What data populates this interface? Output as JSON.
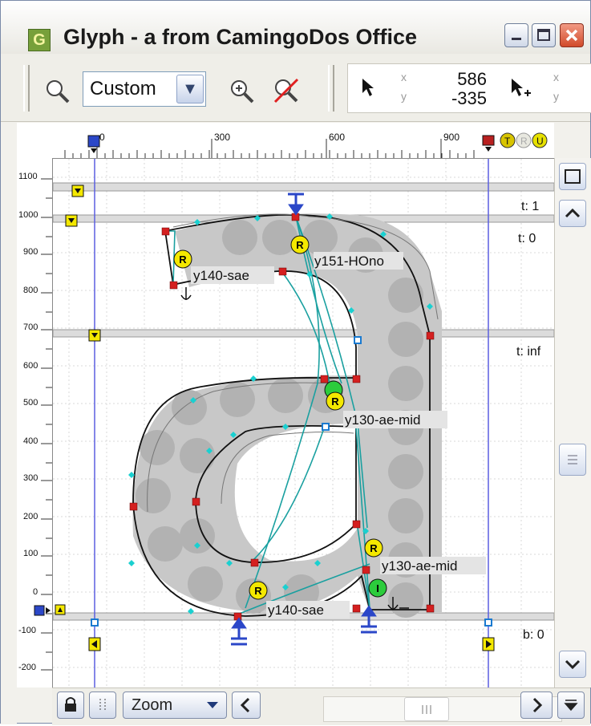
{
  "window": {
    "title": "Glyph - a from CamingoDos Office",
    "title_icon_letter": "G",
    "title_icon_color": "#77a03a",
    "buttons": [
      "minimize-icon",
      "maximize-icon",
      "close-icon"
    ]
  },
  "toolbar": {
    "zoom_label": "Custom",
    "zoom_in_icon": "zoom-in-icon",
    "zoom_out_icon": "magnifier-icon",
    "no_zoom_icon": "zoom-reset-icon",
    "pointer_icon": "arrow-pointer-icon",
    "pointer_add_icon": "arrow-add-pointer-icon",
    "x_label": "x",
    "y_label": "y",
    "x_value": "586",
    "y_value": "-335",
    "x2_label": "x",
    "y2_label": "y"
  },
  "ruler_top": {
    "labels": [
      "0",
      "300",
      "600",
      "900"
    ],
    "status_icons": [
      "T",
      "R",
      "U"
    ]
  },
  "ruler_left": {
    "labels": [
      "1100",
      "1000",
      "900",
      "800",
      "700",
      "600",
      "500",
      "400",
      "300",
      "200",
      "100",
      "0",
      "-100",
      "-200"
    ]
  },
  "canvas": {
    "zone_labels": {
      "t1": "t: 1",
      "t0": "t: 0",
      "tinf": "t: inf",
      "b0": "b: 0"
    },
    "hint_labels": {
      "y140_top": "y140-sae",
      "y151": "y151-HOno",
      "y130_mid_top": "y130-ae-mid",
      "y130_mid_bottom": "y130-ae-mid",
      "y140_bottom": "y140-sae"
    },
    "badges": {
      "round": "R",
      "interpolate": "I"
    },
    "colors": {
      "accent_teal": "#1aa0a0",
      "node_red": "#d42020",
      "badge_yellow": "#f4e800",
      "badge_green": "#2ccc3c",
      "guide_blue": "#5b5fe0",
      "mask_gray": "#c8c8c8"
    }
  },
  "statusbar": {
    "lock_icon": "lock-icon",
    "points_icon": "dotted-column-icon",
    "zoom_label": "Zoom",
    "left_arrow": "chevron-left-icon",
    "right_arrow": "chevron-right-icon",
    "menu_icon": "triangle-down-icon"
  }
}
